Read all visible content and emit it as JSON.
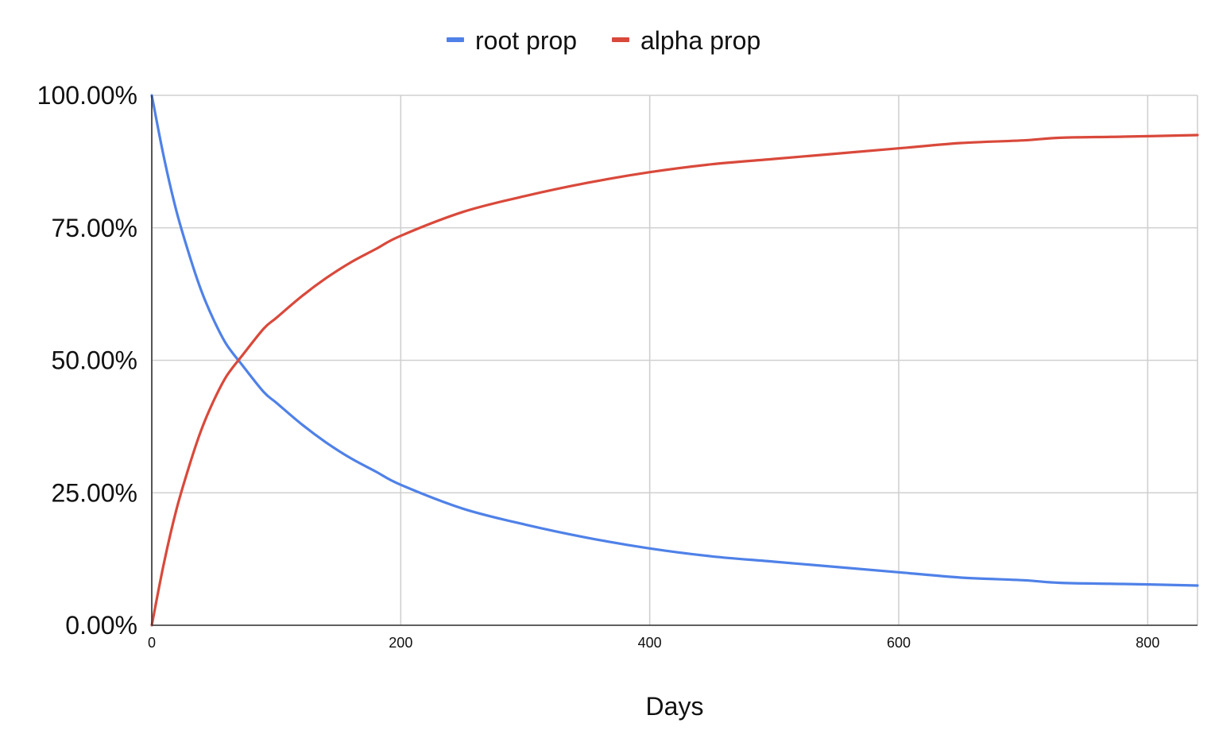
{
  "chart_data": {
    "type": "line",
    "title": "",
    "xlabel": "Days",
    "ylabel": "",
    "xlim": [
      0,
      840
    ],
    "ylim": [
      0,
      1
    ],
    "x_ticks": [
      0,
      200,
      400,
      600,
      800
    ],
    "x_tick_labels": [
      "0",
      "200",
      "400",
      "600",
      "800"
    ],
    "y_ticks": [
      0,
      0.25,
      0.5,
      0.75,
      1
    ],
    "y_tick_labels": [
      "0.00%",
      "25.00%",
      "50.00%",
      "75.00%",
      "100.00%"
    ],
    "grid": true,
    "legend_position": "top-center",
    "x": [
      0,
      10,
      20,
      30,
      40,
      50,
      60,
      73,
      90,
      100,
      120,
      140,
      160,
      180,
      200,
      250,
      300,
      350,
      400,
      450,
      500,
      550,
      600,
      650,
      700,
      730,
      780,
      840
    ],
    "series": [
      {
        "name": "root prop",
        "color": "#4f81e8",
        "values": [
          1.0,
          0.88,
          0.78,
          0.7,
          0.63,
          0.575,
          0.53,
          0.49,
          0.44,
          0.42,
          0.38,
          0.345,
          0.315,
          0.29,
          0.265,
          0.22,
          0.19,
          0.165,
          0.145,
          0.13,
          0.12,
          0.11,
          0.1,
          0.09,
          0.085,
          0.08,
          0.078,
          0.075
        ]
      },
      {
        "name": "alpha prop",
        "color": "#d9493b",
        "values": [
          0.0,
          0.12,
          0.22,
          0.3,
          0.37,
          0.425,
          0.47,
          0.51,
          0.56,
          0.58,
          0.62,
          0.655,
          0.685,
          0.71,
          0.735,
          0.78,
          0.81,
          0.835,
          0.855,
          0.87,
          0.88,
          0.89,
          0.9,
          0.91,
          0.915,
          0.92,
          0.922,
          0.925
        ]
      }
    ]
  }
}
